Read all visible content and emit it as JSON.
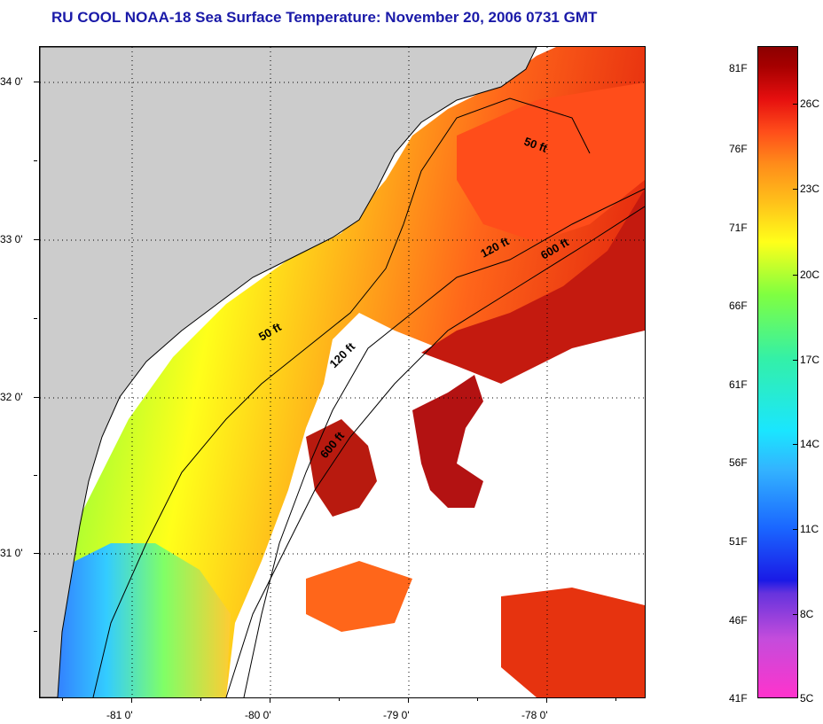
{
  "title": "RU COOL  NOAA-18  Sea Surface Temperature:  November 20, 2006 0731 GMT",
  "map": {
    "lat_ticks": [
      "34 0'",
      "33 0'",
      "32 0'",
      "31 0'"
    ],
    "lon_ticks": [
      "-81 0'",
      "-80 0'",
      "-79 0'",
      "-78 0'"
    ],
    "isobath_labels": [
      "50 ft",
      "120 ft",
      "600 ft",
      "50 ft",
      "120 ft",
      "600 ft"
    ]
  },
  "colorbar": {
    "fahrenheit": [
      "81F",
      "76F",
      "71F",
      "66F",
      "61F",
      "56F",
      "51F",
      "46F",
      "41F"
    ],
    "celsius": [
      "26C",
      "23C",
      "20C",
      "17C",
      "14C",
      "11C",
      "8C",
      "5C"
    ]
  },
  "colors": {
    "title": "#1a1aa8",
    "land": "#cccccc",
    "cloud": "#ffffff"
  }
}
